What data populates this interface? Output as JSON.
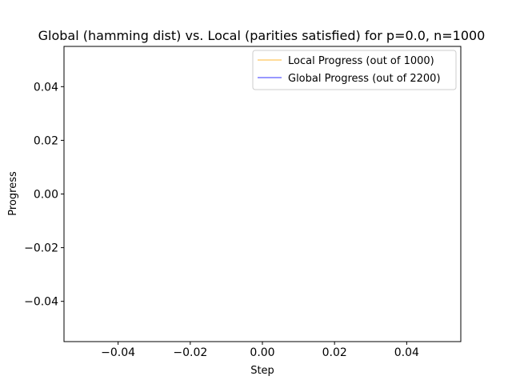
{
  "chart_data": {
    "type": "line",
    "title": "Global (hamming dist) vs. Local (parities satisfied) for p=0.0, n=1000",
    "xlabel": "Step",
    "ylabel": "Progress",
    "xlim": [
      -0.055,
      0.055
    ],
    "ylim": [
      -0.055,
      0.055
    ],
    "xticks": [
      -0.04,
      -0.02,
      0.0,
      0.02,
      0.04
    ],
    "xtick_labels": [
      "−0.04",
      "−0.02",
      "0.00",
      "0.02",
      "0.04"
    ],
    "yticks": [
      -0.04,
      -0.02,
      0.0,
      0.02,
      0.04
    ],
    "ytick_labels": [
      "−0.04",
      "−0.02",
      "0.00",
      "0.02",
      "0.04"
    ],
    "grid": false,
    "legend_position": "top-right",
    "series": [
      {
        "name": "Local Progress (out of 1000)",
        "color": "#ffa500",
        "x": [],
        "y": []
      },
      {
        "name": "Global Progress (out of 2200)",
        "color": "#0000ff",
        "x": [],
        "y": []
      }
    ]
  }
}
